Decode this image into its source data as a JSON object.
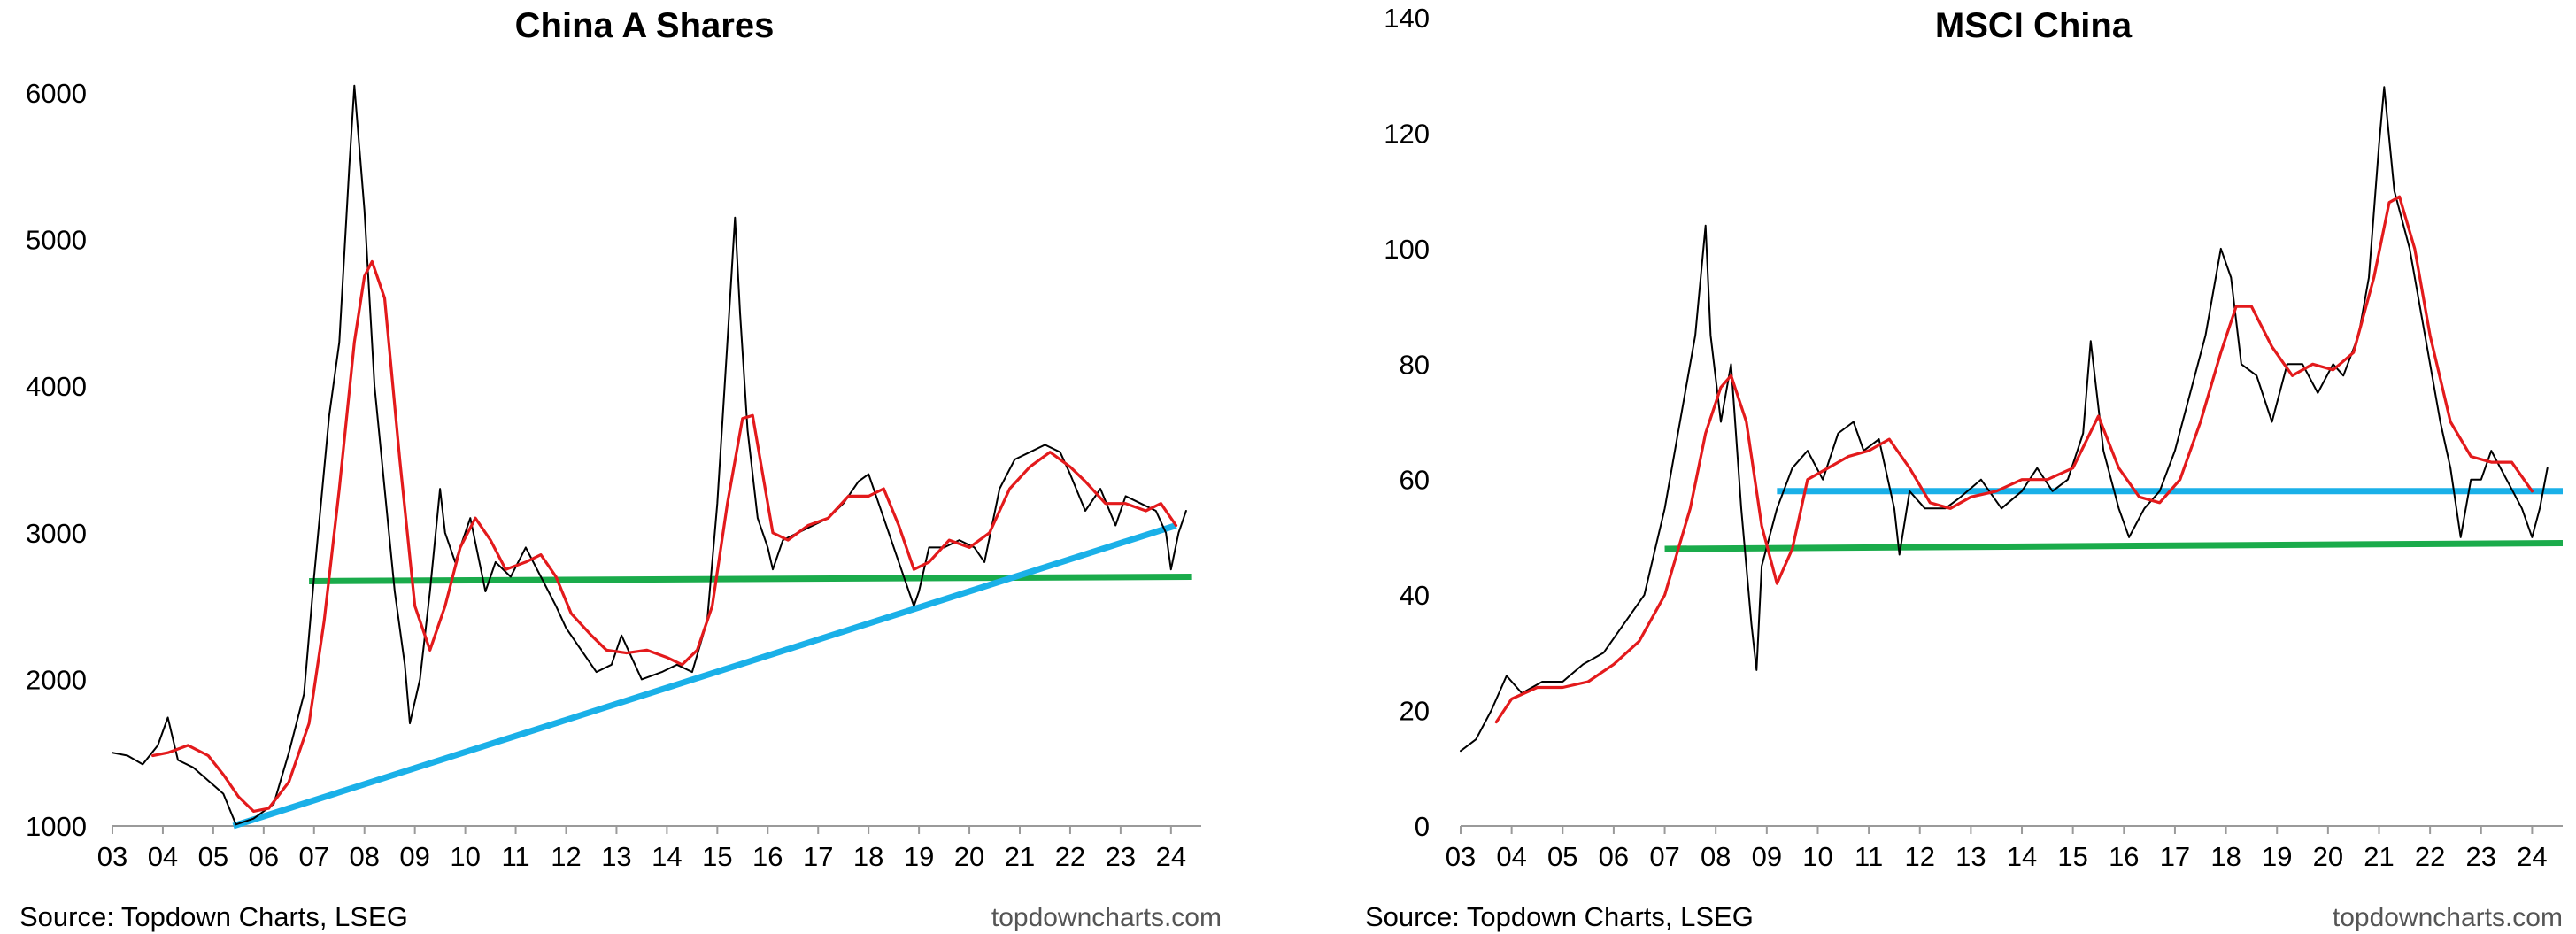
{
  "chart_data": [
    {
      "type": "line",
      "title": "China A Shares",
      "ylim": [
        1000,
        6000
      ],
      "yticks": [
        1000,
        2000,
        3000,
        4000,
        5000,
        6000
      ],
      "xlim": [
        2003.0,
        2024.6
      ],
      "xticks": [
        2003,
        2004,
        2005,
        2006,
        2007,
        2008,
        2009,
        2010,
        2011,
        2012,
        2013,
        2014,
        2015,
        2016,
        2017,
        2018,
        2019,
        2020,
        2021,
        2022,
        2023,
        2024
      ],
      "xtick_labels": [
        "03",
        "04",
        "05",
        "06",
        "07",
        "08",
        "09",
        "10",
        "11",
        "12",
        "13",
        "14",
        "15",
        "16",
        "17",
        "18",
        "19",
        "20",
        "21",
        "22",
        "23",
        "24"
      ],
      "grid": false,
      "colors": {
        "price": "#000000",
        "moving_average": "#e31a1c",
        "support": "#1aab4b",
        "trend": "#1ab0e8"
      },
      "series": [
        {
          "role": "price",
          "x": [
            2003.0,
            2003.3,
            2003.6,
            2003.9,
            2004.1,
            2004.3,
            2004.6,
            2004.9,
            2005.2,
            2005.45,
            2005.8,
            2006.2,
            2006.5,
            2006.8,
            2007.0,
            2007.3,
            2007.5,
            2007.7,
            2007.8,
            2008.0,
            2008.2,
            2008.4,
            2008.6,
            2008.8,
            2008.9,
            2009.1,
            2009.3,
            2009.5,
            2009.6,
            2009.8,
            2010.1,
            2010.4,
            2010.6,
            2010.9,
            2011.2,
            2011.5,
            2011.8,
            2012.0,
            2012.3,
            2012.6,
            2012.9,
            2013.1,
            2013.5,
            2013.9,
            2014.2,
            2014.5,
            2014.8,
            2015.0,
            2015.2,
            2015.35,
            2015.45,
            2015.6,
            2015.8,
            2016.0,
            2016.1,
            2016.3,
            2016.6,
            2016.9,
            2017.2,
            2017.5,
            2017.8,
            2018.0,
            2018.3,
            2018.6,
            2018.9,
            2019.0,
            2019.2,
            2019.5,
            2019.8,
            2020.1,
            2020.3,
            2020.6,
            2020.9,
            2021.2,
            2021.5,
            2021.8,
            2022.0,
            2022.3,
            2022.6,
            2022.9,
            2023.1,
            2023.4,
            2023.7,
            2023.9,
            2024.0,
            2024.15,
            2024.3
          ],
          "values": [
            1500,
            1480,
            1420,
            1550,
            1740,
            1450,
            1400,
            1310,
            1220,
            1010,
            1050,
            1150,
            1500,
            1900,
            2700,
            3800,
            4300,
            5500,
            6050,
            5200,
            4000,
            3300,
            2600,
            2100,
            1700,
            2000,
            2600,
            3300,
            3000,
            2800,
            3100,
            2600,
            2800,
            2700,
            2900,
            2700,
            2500,
            2350,
            2200,
            2050,
            2100,
            2300,
            2000,
            2050,
            2100,
            2050,
            2400,
            3200,
            4300,
            5150,
            4500,
            3700,
            3100,
            2900,
            2750,
            2950,
            3000,
            3050,
            3100,
            3200,
            3350,
            3400,
            3100,
            2800,
            2500,
            2600,
            2900,
            2900,
            2950,
            2900,
            2800,
            3300,
            3500,
            3550,
            3600,
            3550,
            3400,
            3150,
            3300,
            3050,
            3250,
            3200,
            3150,
            3000,
            2750,
            3000,
            3150
          ]
        },
        {
          "role": "moving_average",
          "x": [
            2003.8,
            2004.1,
            2004.5,
            2004.9,
            2005.2,
            2005.5,
            2005.8,
            2006.1,
            2006.5,
            2006.9,
            2007.2,
            2007.5,
            2007.8,
            2008.0,
            2008.15,
            2008.4,
            2008.7,
            2009.0,
            2009.3,
            2009.6,
            2009.9,
            2010.2,
            2010.5,
            2010.8,
            2011.2,
            2011.5,
            2011.8,
            2012.1,
            2012.5,
            2012.8,
            2013.2,
            2013.6,
            2014.0,
            2014.3,
            2014.6,
            2014.9,
            2015.2,
            2015.5,
            2015.7,
            2015.9,
            2016.1,
            2016.4,
            2016.8,
            2017.2,
            2017.6,
            2018.0,
            2018.3,
            2018.6,
            2018.9,
            2019.2,
            2019.6,
            2020.0,
            2020.4,
            2020.8,
            2021.2,
            2021.6,
            2022.0,
            2022.3,
            2022.7,
            2023.1,
            2023.5,
            2023.8,
            2024.1
          ],
          "values": [
            1480,
            1500,
            1550,
            1480,
            1350,
            1200,
            1100,
            1120,
            1300,
            1700,
            2400,
            3300,
            4300,
            4750,
            4850,
            4600,
            3500,
            2500,
            2200,
            2500,
            2900,
            3100,
            2950,
            2750,
            2800,
            2850,
            2700,
            2450,
            2300,
            2200,
            2180,
            2200,
            2150,
            2100,
            2200,
            2500,
            3200,
            3780,
            3800,
            3400,
            3000,
            2950,
            3050,
            3100,
            3250,
            3250,
            3300,
            3050,
            2750,
            2800,
            2950,
            2900,
            3000,
            3300,
            3450,
            3550,
            3450,
            3350,
            3200,
            3200,
            3150,
            3200,
            3050
          ]
        }
      ],
      "reference_lines": [
        {
          "role": "support",
          "x": [
            2006.9,
            2024.4
          ],
          "values": [
            2670,
            2700
          ]
        },
        {
          "role": "trend",
          "x": [
            2005.4,
            2024.1
          ],
          "values": [
            1000,
            3050
          ]
        }
      ],
      "source": "Source: Topdown Charts, LSEG",
      "brand": "topdowncharts.com"
    },
    {
      "type": "line",
      "title": "MSCI China",
      "ylim": [
        0,
        140
      ],
      "yticks": [
        0,
        20,
        40,
        60,
        80,
        100,
        120,
        140
      ],
      "xlim": [
        2003.0,
        2024.6
      ],
      "xticks": [
        2003,
        2004,
        2005,
        2006,
        2007,
        2008,
        2009,
        2010,
        2011,
        2012,
        2013,
        2014,
        2015,
        2016,
        2017,
        2018,
        2019,
        2020,
        2021,
        2022,
        2023,
        2024
      ],
      "xtick_labels": [
        "03",
        "04",
        "05",
        "06",
        "07",
        "08",
        "09",
        "10",
        "11",
        "12",
        "13",
        "14",
        "15",
        "16",
        "17",
        "18",
        "19",
        "20",
        "21",
        "22",
        "23",
        "24"
      ],
      "grid": false,
      "colors": {
        "price": "#000000",
        "moving_average": "#e31a1c",
        "support": "#1aab4b",
        "resistance": "#1ab0e8"
      },
      "series": [
        {
          "role": "price",
          "x": [
            2003.0,
            2003.3,
            2003.6,
            2003.9,
            2004.2,
            2004.6,
            2005.0,
            2005.4,
            2005.8,
            2006.2,
            2006.6,
            2007.0,
            2007.3,
            2007.6,
            2007.8,
            2007.9,
            2008.1,
            2008.3,
            2008.5,
            2008.7,
            2008.8,
            2008.9,
            2009.2,
            2009.5,
            2009.8,
            2010.1,
            2010.4,
            2010.7,
            2010.9,
            2011.2,
            2011.5,
            2011.6,
            2011.8,
            2012.1,
            2012.5,
            2012.8,
            2013.2,
            2013.6,
            2014.0,
            2014.3,
            2014.6,
            2014.9,
            2015.2,
            2015.35,
            2015.6,
            2015.9,
            2016.1,
            2016.4,
            2016.7,
            2017.0,
            2017.3,
            2017.6,
            2017.9,
            2018.1,
            2018.3,
            2018.6,
            2018.9,
            2019.2,
            2019.5,
            2019.8,
            2020.1,
            2020.3,
            2020.6,
            2020.8,
            2021.0,
            2021.1,
            2021.3,
            2021.6,
            2021.9,
            2022.2,
            2022.4,
            2022.6,
            2022.8,
            2023.0,
            2023.2,
            2023.5,
            2023.8,
            2024.0,
            2024.15,
            2024.3
          ],
          "values": [
            13,
            15,
            20,
            26,
            23,
            25,
            25,
            28,
            30,
            35,
            40,
            55,
            70,
            85,
            104,
            85,
            70,
            80,
            55,
            35,
            27,
            45,
            55,
            62,
            65,
            60,
            68,
            70,
            65,
            67,
            55,
            47,
            58,
            55,
            55,
            57,
            60,
            55,
            58,
            62,
            58,
            60,
            68,
            84,
            65,
            55,
            50,
            55,
            58,
            65,
            75,
            85,
            100,
            95,
            80,
            78,
            70,
            80,
            80,
            75,
            80,
            78,
            85,
            95,
            118,
            128,
            110,
            100,
            85,
            70,
            62,
            50,
            60,
            60,
            65,
            60,
            55,
            50,
            55,
            62
          ]
        },
        {
          "role": "moving_average",
          "x": [
            2003.7,
            2004.0,
            2004.5,
            2005.0,
            2005.5,
            2006.0,
            2006.5,
            2007.0,
            2007.5,
            2007.8,
            2008.1,
            2008.3,
            2008.6,
            2008.9,
            2009.2,
            2009.5,
            2009.8,
            2010.2,
            2010.6,
            2011.0,
            2011.4,
            2011.8,
            2012.2,
            2012.6,
            2013.0,
            2013.5,
            2014.0,
            2014.5,
            2015.0,
            2015.5,
            2015.9,
            2016.3,
            2016.7,
            2017.1,
            2017.5,
            2017.9,
            2018.2,
            2018.5,
            2018.9,
            2019.3,
            2019.7,
            2020.1,
            2020.5,
            2020.9,
            2021.2,
            2021.4,
            2021.7,
            2022.0,
            2022.4,
            2022.8,
            2023.2,
            2023.6,
            2024.0
          ],
          "values": [
            18,
            22,
            24,
            24,
            25,
            28,
            32,
            40,
            55,
            68,
            76,
            78,
            70,
            52,
            42,
            48,
            60,
            62,
            64,
            65,
            67,
            62,
            56,
            55,
            57,
            58,
            60,
            60,
            62,
            71,
            62,
            57,
            56,
            60,
            70,
            82,
            90,
            90,
            83,
            78,
            80,
            79,
            82,
            95,
            108,
            109,
            100,
            85,
            70,
            64,
            63,
            63,
            58
          ]
        }
      ],
      "reference_lines": [
        {
          "role": "support",
          "x": [
            2007.0,
            2024.6
          ],
          "values": [
            48,
            49
          ]
        },
        {
          "role": "resistance",
          "x": [
            2009.2,
            2024.6
          ],
          "values": [
            58,
            58
          ]
        }
      ],
      "source": "Source: Topdown Charts, LSEG",
      "brand": "topdowncharts.com"
    }
  ]
}
